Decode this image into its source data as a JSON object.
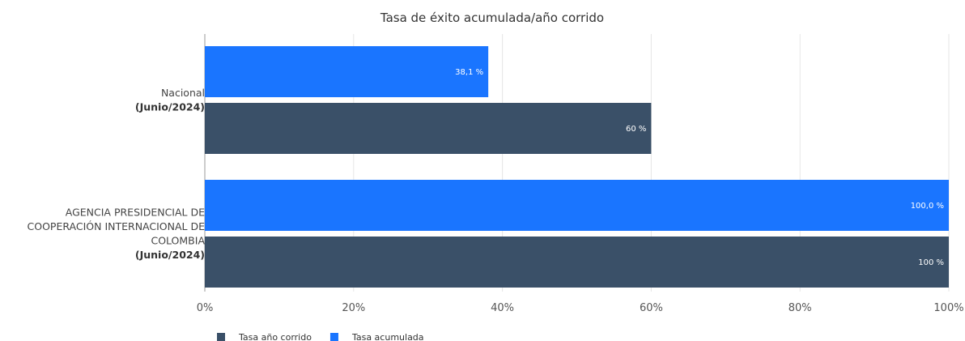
{
  "chart_data": {
    "type": "bar",
    "orientation": "horizontal",
    "title": "Tasa de éxito acumulada/año corrido",
    "categories": [
      {
        "name_lines": [
          "Nacional"
        ],
        "period": "(Junio/2024)"
      },
      {
        "name_lines": [
          "AGENCIA PRESIDENCIAL DE",
          "COOPERACIÓN INTERNACIONAL DE",
          "COLOMBIA"
        ],
        "period": "(Junio/2024)"
      }
    ],
    "series": [
      {
        "name": "Tasa acumulada",
        "color": "#1a75ff",
        "values": [
          38.1,
          100.0
        ],
        "labels": [
          "38,1 %",
          "100,0 %"
        ]
      },
      {
        "name": "Tasa año corrido",
        "color": "#3a5068",
        "values": [
          60,
          100
        ],
        "labels": [
          "60 %",
          "100 %"
        ]
      }
    ],
    "xlim": [
      0,
      100
    ],
    "x_ticks": [
      "0%",
      "20%",
      "40%",
      "60%",
      "80%",
      "100%"
    ],
    "grid": true,
    "legend": {
      "position": "bottom-left",
      "items": [
        {
          "label": "Tasa año corrido",
          "color": "#3a5068"
        },
        {
          "label": "Tasa acumulada",
          "color": "#1a75ff"
        }
      ]
    }
  }
}
